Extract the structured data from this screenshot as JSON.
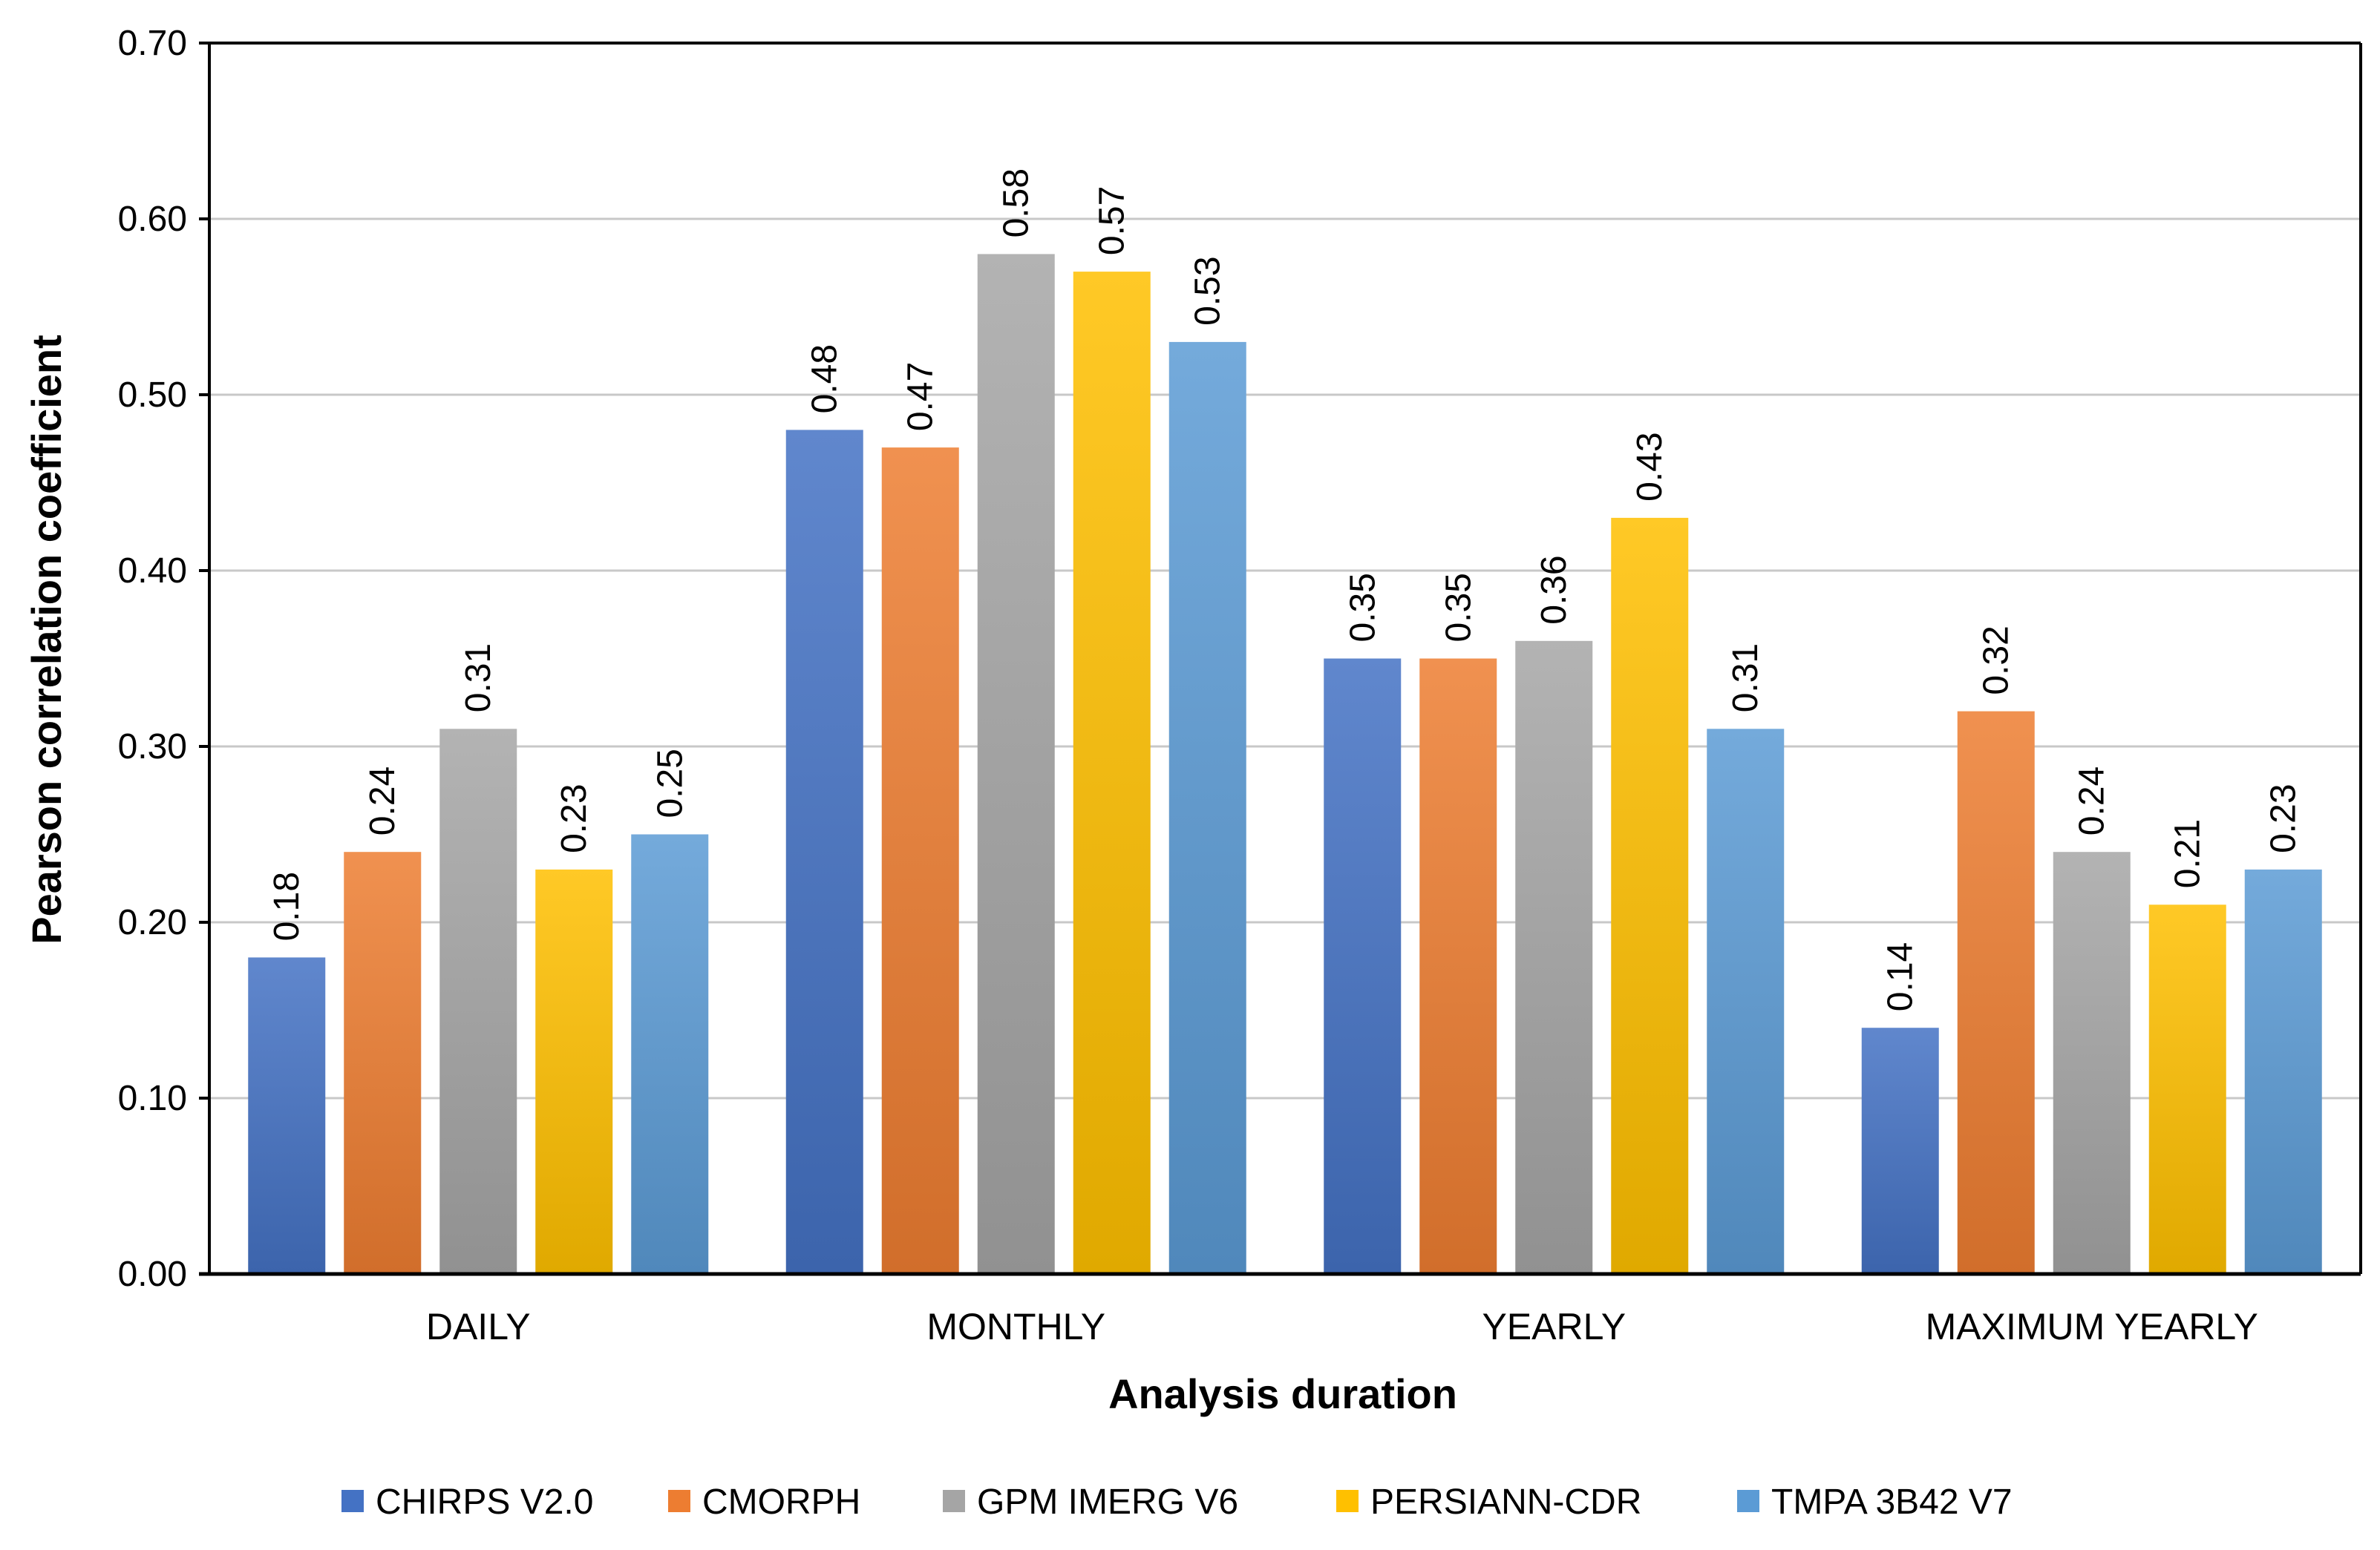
{
  "chart_data": {
    "type": "bar",
    "title": "",
    "xlabel": "Analysis duration",
    "ylabel": "Pearson correlation coefficient",
    "ylim": [
      0,
      0.7
    ],
    "yticks": [
      "0.00",
      "0.10",
      "0.20",
      "0.30",
      "0.40",
      "0.50",
      "0.60",
      "0.70"
    ],
    "grid": true,
    "legend_position": "bottom",
    "categories": [
      "DAILY",
      "MONTHLY",
      "YEARLY",
      "MAXIMUM YEARLY"
    ],
    "series": [
      {
        "name": "CHIRPS V2.0",
        "color": "#4472C4",
        "values": [
          0.18,
          0.48,
          0.35,
          0.14
        ]
      },
      {
        "name": "CMORPH",
        "color": "#ED7D31",
        "values": [
          0.24,
          0.47,
          0.35,
          0.32
        ]
      },
      {
        "name": "GPM IMERG V6",
        "color": "#A5A5A5",
        "values": [
          0.31,
          0.58,
          0.36,
          0.24
        ]
      },
      {
        "name": "PERSIANN-CDR",
        "color": "#FFC000",
        "values": [
          0.23,
          0.57,
          0.43,
          0.21
        ]
      },
      {
        "name": "TMPA 3B42 V7",
        "color": "#5B9BD5",
        "values": [
          0.25,
          0.53,
          0.31,
          0.23
        ]
      }
    ]
  }
}
